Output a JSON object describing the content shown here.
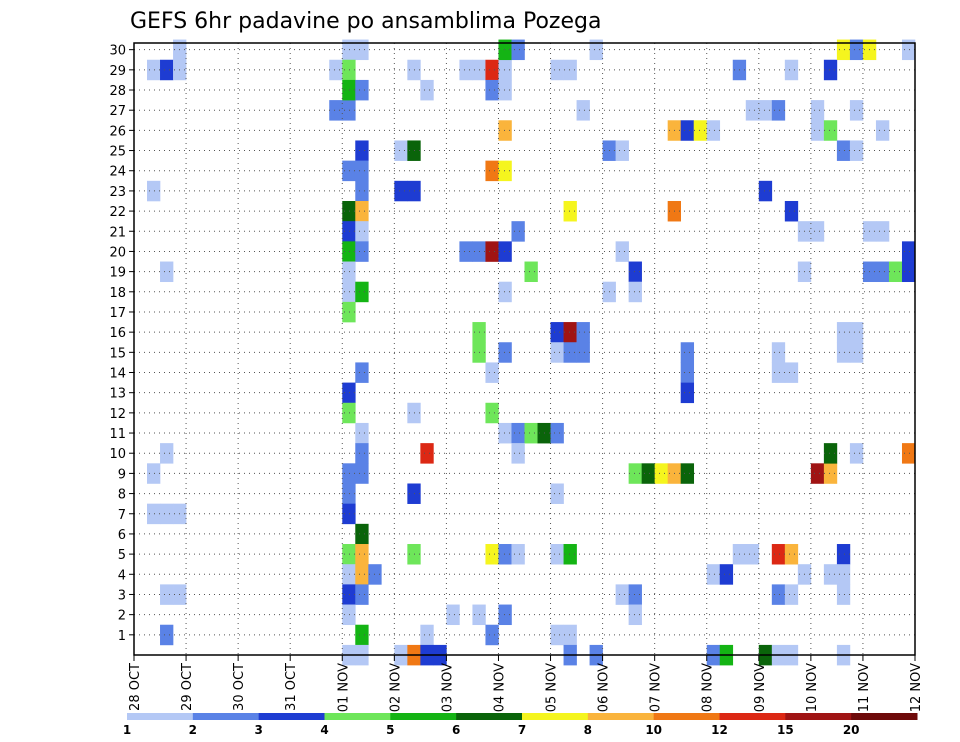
{
  "chart_data": {
    "type": "heatmap",
    "title": "GEFS 6hr padavine po ansamblima Pozega",
    "x_tick_labels": [
      "28 OCT",
      "29 OCT",
      "30 OCT",
      "31 OCT",
      "01 NOV",
      "02 NOV",
      "03 NOV",
      "04 NOV",
      "05 NOV",
      "06 NOV",
      "07 NOV",
      "08 NOV",
      "09 NOV",
      "10 NOV",
      "11 NOV",
      "12 NOV"
    ],
    "y_tick_labels": [
      "1",
      "2",
      "3",
      "4",
      "5",
      "6",
      "7",
      "8",
      "9",
      "10",
      "11",
      "12",
      "13",
      "14",
      "15",
      "16",
      "17",
      "18",
      "19",
      "20",
      "21",
      "22",
      "23",
      "24",
      "25",
      "26",
      "27",
      "28",
      "29",
      "30"
    ],
    "x_range_days": [
      0,
      15
    ],
    "y_range": [
      0,
      30
    ],
    "grid": true,
    "colorbar": {
      "labels": [
        "1",
        "2",
        "3",
        "4",
        "5",
        "6",
        "7",
        "8",
        "10",
        "12",
        "15",
        "20"
      ],
      "colors": [
        "#b4c8f5",
        "#5a82e6",
        "#1e3cd2",
        "#6ee65a",
        "#14b414",
        "#0a640a",
        "#f5f51e",
        "#fab43c",
        "#f07814",
        "#dc2814",
        "#a01414",
        "#6e0a0a"
      ]
    },
    "cells": [
      {
        "x": 0.25,
        "m": 29,
        "c": 1
      },
      {
        "x": 0.5,
        "m": 29,
        "c": 3
      },
      {
        "x": 0.75,
        "m": 29,
        "c": 1
      },
      {
        "x": 0.75,
        "m": 30,
        "c": 1
      },
      {
        "x": 0.25,
        "m": 23,
        "c": 1
      },
      {
        "x": 0.5,
        "m": 19,
        "c": 1
      },
      {
        "x": 0.5,
        "m": 10,
        "c": 1
      },
      {
        "x": 0.25,
        "m": 9,
        "c": 1
      },
      {
        "x": 0.25,
        "m": 7,
        "c": 1
      },
      {
        "x": 0.5,
        "m": 7,
        "c": 1
      },
      {
        "x": 0.75,
        "m": 7,
        "c": 1
      },
      {
        "x": 0.5,
        "m": 3,
        "c": 1
      },
      {
        "x": 0.75,
        "m": 3,
        "c": 1
      },
      {
        "x": 0.5,
        "m": 1,
        "c": 2
      },
      {
        "x": 3.75,
        "m": 29,
        "c": 1
      },
      {
        "x": 3.75,
        "m": 27,
        "c": 2
      },
      {
        "x": 4.0,
        "m": 27,
        "c": 2
      },
      {
        "x": 4.0,
        "m": 30,
        "c": 1
      },
      {
        "x": 4.25,
        "m": 30,
        "c": 1
      },
      {
        "x": 4.0,
        "m": 29,
        "c": 4
      },
      {
        "x": 4.0,
        "m": 28,
        "c": 5
      },
      {
        "x": 4.25,
        "m": 28,
        "c": 2
      },
      {
        "x": 4.25,
        "m": 25,
        "c": 3
      },
      {
        "x": 4.0,
        "m": 24,
        "c": 2
      },
      {
        "x": 4.25,
        "m": 24,
        "c": 2
      },
      {
        "x": 4.25,
        "m": 23,
        "c": 2
      },
      {
        "x": 4.0,
        "m": 22,
        "c": 6
      },
      {
        "x": 4.25,
        "m": 22,
        "c": 8
      },
      {
        "x": 4.0,
        "m": 21,
        "c": 3
      },
      {
        "x": 4.25,
        "m": 21,
        "c": 1
      },
      {
        "x": 4.0,
        "m": 20,
        "c": 5
      },
      {
        "x": 4.25,
        "m": 20,
        "c": 2
      },
      {
        "x": 4.0,
        "m": 19,
        "c": 1
      },
      {
        "x": 4.0,
        "m": 18,
        "c": 1
      },
      {
        "x": 4.25,
        "m": 18,
        "c": 5
      },
      {
        "x": 4.0,
        "m": 17,
        "c": 4
      },
      {
        "x": 4.25,
        "m": 14,
        "c": 2
      },
      {
        "x": 4.0,
        "m": 13,
        "c": 3
      },
      {
        "x": 4.0,
        "m": 12,
        "c": 4
      },
      {
        "x": 4.25,
        "m": 11,
        "c": 1
      },
      {
        "x": 4.25,
        "m": 10,
        "c": 2
      },
      {
        "x": 4.0,
        "m": 9,
        "c": 2
      },
      {
        "x": 4.25,
        "m": 9,
        "c": 2
      },
      {
        "x": 4.0,
        "m": 8,
        "c": 2
      },
      {
        "x": 4.0,
        "m": 7,
        "c": 3
      },
      {
        "x": 4.25,
        "m": 6,
        "c": 6
      },
      {
        "x": 4.0,
        "m": 5,
        "c": 4
      },
      {
        "x": 4.25,
        "m": 5,
        "c": 8
      },
      {
        "x": 4.0,
        "m": 4,
        "c": 1
      },
      {
        "x": 4.25,
        "m": 4,
        "c": 8
      },
      {
        "x": 4.5,
        "m": 4,
        "c": 2
      },
      {
        "x": 4.0,
        "m": 3,
        "c": 3
      },
      {
        "x": 4.25,
        "m": 3,
        "c": 2
      },
      {
        "x": 4.0,
        "m": 2,
        "c": 1
      },
      {
        "x": 4.25,
        "m": 1,
        "c": 5
      },
      {
        "x": 4.0,
        "m": 0,
        "c": 1
      },
      {
        "x": 4.25,
        "m": 0,
        "c": 1
      },
      {
        "x": 5.25,
        "m": 29,
        "c": 1
      },
      {
        "x": 5.5,
        "m": 28,
        "c": 1
      },
      {
        "x": 5.0,
        "m": 25,
        "c": 1
      },
      {
        "x": 5.25,
        "m": 25,
        "c": 6
      },
      {
        "x": 5.0,
        "m": 23,
        "c": 3
      },
      {
        "x": 5.25,
        "m": 23,
        "c": 3
      },
      {
        "x": 5.25,
        "m": 12,
        "c": 1
      },
      {
        "x": 5.5,
        "m": 10,
        "c": 10
      },
      {
        "x": 5.25,
        "m": 8,
        "c": 3
      },
      {
        "x": 5.25,
        "m": 5,
        "c": 4
      },
      {
        "x": 5.5,
        "m": 1,
        "c": 1
      },
      {
        "x": 5.0,
        "m": 0,
        "c": 1
      },
      {
        "x": 5.25,
        "m": 0,
        "c": 9
      },
      {
        "x": 5.5,
        "m": 0,
        "c": 3
      },
      {
        "x": 5.75,
        "m": 0,
        "c": 3
      },
      {
        "x": 6.25,
        "m": 29,
        "c": 1
      },
      {
        "x": 6.5,
        "m": 29,
        "c": 1
      },
      {
        "x": 6.75,
        "m": 29,
        "c": 10
      },
      {
        "x": 7.0,
        "m": 29,
        "c": 1
      },
      {
        "x": 6.75,
        "m": 28,
        "c": 2
      },
      {
        "x": 7.0,
        "m": 28,
        "c": 1
      },
      {
        "x": 7.0,
        "m": 26,
        "c": 8
      },
      {
        "x": 6.75,
        "m": 24,
        "c": 9
      },
      {
        "x": 7.0,
        "m": 24,
        "c": 7
      },
      {
        "x": 6.25,
        "m": 20,
        "c": 2
      },
      {
        "x": 6.5,
        "m": 20,
        "c": 2
      },
      {
        "x": 6.75,
        "m": 20,
        "c": 11
      },
      {
        "x": 7.0,
        "m": 20,
        "c": 3
      },
      {
        "x": 7.0,
        "m": 18,
        "c": 1
      },
      {
        "x": 6.5,
        "m": 16,
        "c": 4
      },
      {
        "x": 6.5,
        "m": 15,
        "c": 4
      },
      {
        "x": 7.0,
        "m": 15,
        "c": 2
      },
      {
        "x": 6.75,
        "m": 14,
        "c": 1
      },
      {
        "x": 6.75,
        "m": 12,
        "c": 4
      },
      {
        "x": 7.0,
        "m": 11,
        "c": 1
      },
      {
        "x": 6.75,
        "m": 5,
        "c": 7
      },
      {
        "x": 7.0,
        "m": 5,
        "c": 2
      },
      {
        "x": 6.0,
        "m": 2,
        "c": 1
      },
      {
        "x": 6.5,
        "m": 2,
        "c": 1
      },
      {
        "x": 7.0,
        "m": 2,
        "c": 2
      },
      {
        "x": 6.75,
        "m": 1,
        "c": 2
      },
      {
        "x": 7.0,
        "m": 30,
        "c": 5
      },
      {
        "x": 7.25,
        "m": 30,
        "c": 2
      },
      {
        "x": 7.25,
        "m": 21,
        "c": 2
      },
      {
        "x": 7.5,
        "m": 19,
        "c": 4
      },
      {
        "x": 7.25,
        "m": 11,
        "c": 2
      },
      {
        "x": 7.5,
        "m": 11,
        "c": 4
      },
      {
        "x": 7.75,
        "m": 11,
        "c": 6
      },
      {
        "x": 8.0,
        "m": 11,
        "c": 2
      },
      {
        "x": 7.25,
        "m": 10,
        "c": 1
      },
      {
        "x": 7.25,
        "m": 5,
        "c": 1
      },
      {
        "x": 8.0,
        "m": 29,
        "c": 1
      },
      {
        "x": 8.25,
        "m": 29,
        "c": 1
      },
      {
        "x": 8.5,
        "m": 27,
        "c": 1
      },
      {
        "x": 8.25,
        "m": 22,
        "c": 7
      },
      {
        "x": 8.0,
        "m": 16,
        "c": 3
      },
      {
        "x": 8.25,
        "m": 16,
        "c": 11
      },
      {
        "x": 8.5,
        "m": 16,
        "c": 2
      },
      {
        "x": 8.0,
        "m": 15,
        "c": 1
      },
      {
        "x": 8.25,
        "m": 15,
        "c": 2
      },
      {
        "x": 8.5,
        "m": 15,
        "c": 2
      },
      {
        "x": 8.0,
        "m": 8,
        "c": 1
      },
      {
        "x": 8.0,
        "m": 5,
        "c": 1
      },
      {
        "x": 8.25,
        "m": 5,
        "c": 5
      },
      {
        "x": 8.0,
        "m": 1,
        "c": 1
      },
      {
        "x": 8.25,
        "m": 1,
        "c": 1
      },
      {
        "x": 8.25,
        "m": 0,
        "c": 2
      },
      {
        "x": 8.75,
        "m": 0,
        "c": 2
      },
      {
        "x": 8.75,
        "m": 30,
        "c": 1
      },
      {
        "x": 9.0,
        "m": 25,
        "c": 2
      },
      {
        "x": 9.25,
        "m": 25,
        "c": 1
      },
      {
        "x": 9.25,
        "m": 20,
        "c": 1
      },
      {
        "x": 9.5,
        "m": 19,
        "c": 3
      },
      {
        "x": 9.0,
        "m": 18,
        "c": 1
      },
      {
        "x": 9.5,
        "m": 18,
        "c": 1
      },
      {
        "x": 9.25,
        "m": 3,
        "c": 1
      },
      {
        "x": 9.5,
        "m": 3,
        "c": 2
      },
      {
        "x": 9.5,
        "m": 2,
        "c": 1
      },
      {
        "x": 9.5,
        "m": 9,
        "c": 4
      },
      {
        "x": 9.75,
        "m": 9,
        "c": 6
      },
      {
        "x": 10.0,
        "m": 9,
        "c": 7
      },
      {
        "x": 10.25,
        "m": 9,
        "c": 8
      },
      {
        "x": 10.5,
        "m": 9,
        "c": 6
      },
      {
        "x": 10.25,
        "m": 26,
        "c": 8
      },
      {
        "x": 10.5,
        "m": 26,
        "c": 3
      },
      {
        "x": 10.75,
        "m": 26,
        "c": 7
      },
      {
        "x": 11.0,
        "m": 26,
        "c": 1
      },
      {
        "x": 10.25,
        "m": 22,
        "c": 9
      },
      {
        "x": 10.5,
        "m": 15,
        "c": 2
      },
      {
        "x": 10.5,
        "m": 14,
        "c": 2
      },
      {
        "x": 10.5,
        "m": 13,
        "c": 3
      },
      {
        "x": 11.0,
        "m": 4,
        "c": 1
      },
      {
        "x": 11.25,
        "m": 4,
        "c": 3
      },
      {
        "x": 11.0,
        "m": 0,
        "c": 2
      },
      {
        "x": 11.25,
        "m": 0,
        "c": 5
      },
      {
        "x": 11.5,
        "m": 29,
        "c": 2
      },
      {
        "x": 11.75,
        "m": 27,
        "c": 1
      },
      {
        "x": 11.5,
        "m": 5,
        "c": 1
      },
      {
        "x": 11.75,
        "m": 5,
        "c": 1
      },
      {
        "x": 12.0,
        "m": 27,
        "c": 1
      },
      {
        "x": 12.25,
        "m": 27,
        "c": 2
      },
      {
        "x": 12.0,
        "m": 23,
        "c": 3
      },
      {
        "x": 12.0,
        "m": 0,
        "c": 6
      },
      {
        "x": 12.25,
        "m": 0,
        "c": 1
      },
      {
        "x": 12.5,
        "m": 0,
        "c": 1
      },
      {
        "x": 12.25,
        "m": 14,
        "c": 1
      },
      {
        "x": 12.5,
        "m": 14,
        "c": 1
      },
      {
        "x": 12.25,
        "m": 15,
        "c": 1
      },
      {
        "x": 12.25,
        "m": 5,
        "c": 10
      },
      {
        "x": 12.5,
        "m": 5,
        "c": 8
      },
      {
        "x": 12.25,
        "m": 3,
        "c": 2
      },
      {
        "x": 12.5,
        "m": 3,
        "c": 1
      },
      {
        "x": 12.75,
        "m": 4,
        "c": 1
      },
      {
        "x": 12.5,
        "m": 29,
        "c": 1
      },
      {
        "x": 12.5,
        "m": 22,
        "c": 3
      },
      {
        "x": 12.75,
        "m": 21,
        "c": 1
      },
      {
        "x": 13.0,
        "m": 21,
        "c": 1
      },
      {
        "x": 12.75,
        "m": 19,
        "c": 1
      },
      {
        "x": 13.0,
        "m": 27,
        "c": 1
      },
      {
        "x": 13.0,
        "m": 26,
        "c": 1
      },
      {
        "x": 13.25,
        "m": 26,
        "c": 4
      },
      {
        "x": 13.25,
        "m": 29,
        "c": 3
      },
      {
        "x": 13.5,
        "m": 25,
        "c": 2
      },
      {
        "x": 13.75,
        "m": 25,
        "c": 1
      },
      {
        "x": 13.0,
        "m": 9,
        "c": 11
      },
      {
        "x": 13.25,
        "m": 9,
        "c": 8
      },
      {
        "x": 13.25,
        "m": 10,
        "c": 6
      },
      {
        "x": 13.5,
        "m": 5,
        "c": 3
      },
      {
        "x": 13.25,
        "m": 4,
        "c": 1
      },
      {
        "x": 13.5,
        "m": 4,
        "c": 1
      },
      {
        "x": 13.5,
        "m": 3,
        "c": 1
      },
      {
        "x": 13.5,
        "m": 0,
        "c": 1
      },
      {
        "x": 13.5,
        "m": 16,
        "c": 1
      },
      {
        "x": 13.75,
        "m": 16,
        "c": 1
      },
      {
        "x": 13.5,
        "m": 15,
        "c": 1
      },
      {
        "x": 13.75,
        "m": 15,
        "c": 1
      },
      {
        "x": 13.75,
        "m": 10,
        "c": 1
      },
      {
        "x": 13.5,
        "m": 30,
        "c": 7
      },
      {
        "x": 13.75,
        "m": 30,
        "c": 2
      },
      {
        "x": 14.0,
        "m": 30,
        "c": 7
      },
      {
        "x": 13.75,
        "m": 27,
        "c": 1
      },
      {
        "x": 14.25,
        "m": 26,
        "c": 1
      },
      {
        "x": 14.0,
        "m": 21,
        "c": 1
      },
      {
        "x": 14.25,
        "m": 21,
        "c": 1
      },
      {
        "x": 14.0,
        "m": 19,
        "c": 2
      },
      {
        "x": 14.25,
        "m": 19,
        "c": 2
      },
      {
        "x": 14.5,
        "m": 19,
        "c": 4
      },
      {
        "x": 14.75,
        "m": 19,
        "c": 3
      },
      {
        "x": 14.75,
        "m": 20,
        "c": 3
      },
      {
        "x": 14.75,
        "m": 10,
        "c": 9
      },
      {
        "x": 14.75,
        "m": 30,
        "c": 1
      }
    ]
  }
}
